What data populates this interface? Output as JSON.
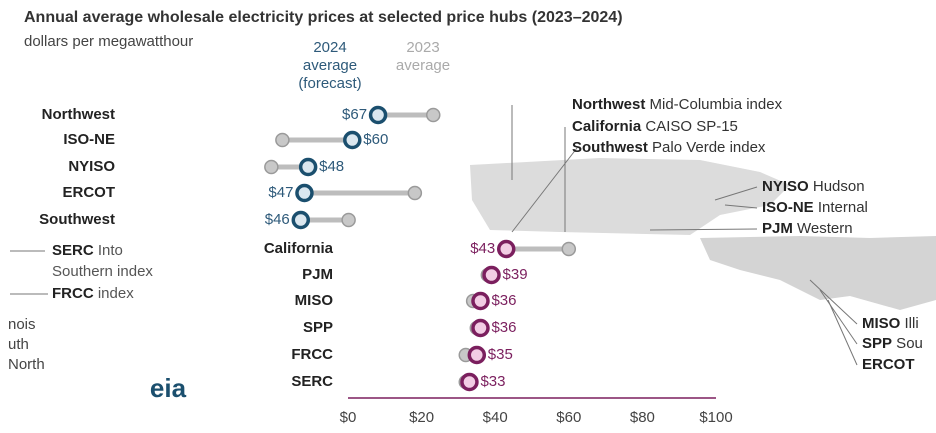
{
  "chart_data": [
    {
      "type": "dumbbell",
      "title": "Annual average wholesale electricity prices at selected price hubs (2023–2024)",
      "subtitle": "dollars per megawatthour",
      "categories": [
        "Northwest",
        "ISO-NE",
        "NYISO",
        "ERCOT",
        "Southwest"
      ],
      "series": [
        {
          "name": "2024 average (forecast)",
          "color": "#1b4f6e",
          "values": [
            67,
            60,
            48,
            47,
            46
          ],
          "value_labels": [
            "$67",
            "$60",
            "$48",
            "$47",
            "$46"
          ]
        },
        {
          "name": "2023 average",
          "color": "#bdbdbd",
          "values": [
            82,
            41,
            38,
            77,
            59
          ]
        }
      ],
      "xlim": [
        0,
        100
      ]
    },
    {
      "type": "dumbbell",
      "categories": [
        "California",
        "PJM",
        "MISO",
        "SPP",
        "FRCC",
        "SERC"
      ],
      "series": [
        {
          "name": "2024 average (forecast)",
          "color": "#7b1f5e",
          "values": [
            43,
            39,
            36,
            36,
            35,
            33
          ],
          "value_labels": [
            "$43",
            "$39",
            "$36",
            "$36",
            "$35",
            "$33"
          ]
        },
        {
          "name": "2023 average",
          "color": "#bdbdbd",
          "values": [
            60,
            38,
            34,
            35,
            32,
            32
          ]
        }
      ],
      "xlim": [
        0,
        100
      ],
      "xticks": [
        {
          "value": 0,
          "label": "$0"
        },
        {
          "value": 20,
          "label": "$20"
        },
        {
          "value": 40,
          "label": "$40"
        },
        {
          "value": 60,
          "label": "$60"
        },
        {
          "value": 80,
          "label": "$80"
        },
        {
          "value": 100,
          "label": "$100"
        }
      ]
    }
  ],
  "map_labels": [
    {
      "hub": "Northwest",
      "text": "Mid-Columbia index"
    },
    {
      "hub": "California",
      "text": "CAISO SP-15"
    },
    {
      "hub": "Southwest",
      "text": "Palo Verde index"
    },
    {
      "hub": "NYISO",
      "text": "Hudson"
    },
    {
      "hub": "ISO-NE",
      "text": "Internal"
    },
    {
      "hub": "PJM",
      "text": "Western"
    },
    {
      "hub": "SERC",
      "text": "Into"
    },
    {
      "hub": "",
      "text": "Southern index"
    },
    {
      "hub": "FRCC",
      "text": "index"
    },
    {
      "hub": "MISO",
      "text": "Illi"
    },
    {
      "hub": "SPP",
      "text": "Sou"
    },
    {
      "hub": "ERCOT",
      "text": ""
    }
  ],
  "fragments": [
    "nois",
    "uth",
    "North"
  ],
  "logo": "eia"
}
